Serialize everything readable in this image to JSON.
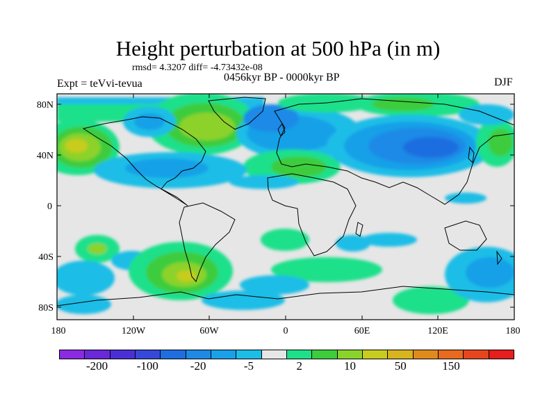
{
  "title": "Height perturbation at 500 hPa (in m)",
  "stats": "rmsd= 4.3207 diff= -4.73432e-08",
  "experiment": "Expt = teVvi-tevua",
  "period": "0456kyr BP - 0000kyr BP",
  "season": "DJF",
  "lat_ticks": [
    "80N",
    "40N",
    "0",
    "40S",
    "80S"
  ],
  "lon_ticks": [
    "180",
    "120W",
    "60W",
    "0",
    "60E",
    "120E",
    "180"
  ],
  "colorbar": {
    "colors": [
      "#8a2be2",
      "#6a28d8",
      "#4b2fd6",
      "#3648d8",
      "#1e6ee0",
      "#1e8ae6",
      "#19a0e8",
      "#1cbde6",
      "#e6e6e6",
      "#1ee08a",
      "#3ccc3c",
      "#8cd22c",
      "#c8cc1e",
      "#d8b41e",
      "#e08a1e",
      "#e86a1e",
      "#e6461e",
      "#e61e1e"
    ],
    "labels": [
      "-200",
      "-100",
      "-20",
      "-5",
      "2",
      "10",
      "50",
      "150"
    ]
  }
}
